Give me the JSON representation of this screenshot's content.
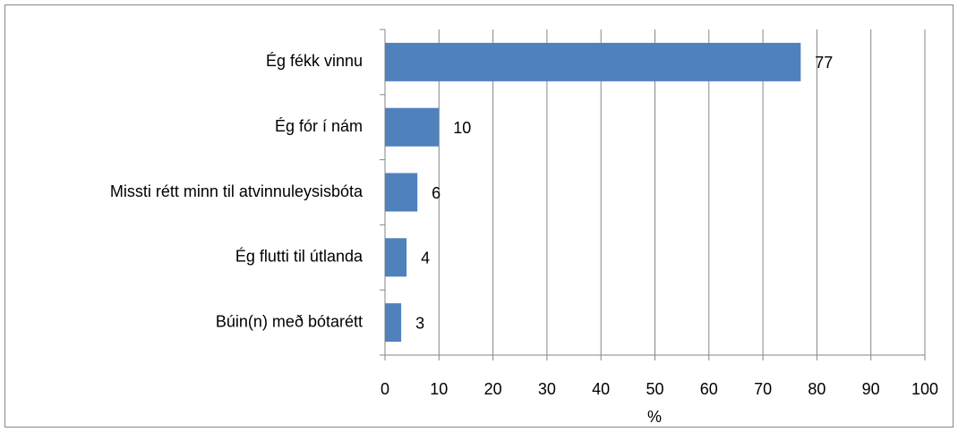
{
  "chart_data": {
    "type": "bar",
    "orientation": "horizontal",
    "categories": [
      "Ég fékk vinnu",
      "Ég fór í nám",
      "Missti rétt minn til atvinnuleysisbóta",
      "Ég flutti til útlanda",
      "Búin(n) með bótarétt"
    ],
    "values": [
      77,
      10,
      6,
      4,
      3
    ],
    "color": "#4f81bd",
    "x_label": "%",
    "xlim": [
      0,
      100
    ],
    "xticks": [
      0,
      10,
      20,
      30,
      40,
      50,
      60,
      70,
      80,
      90,
      100
    ],
    "grid": true
  }
}
